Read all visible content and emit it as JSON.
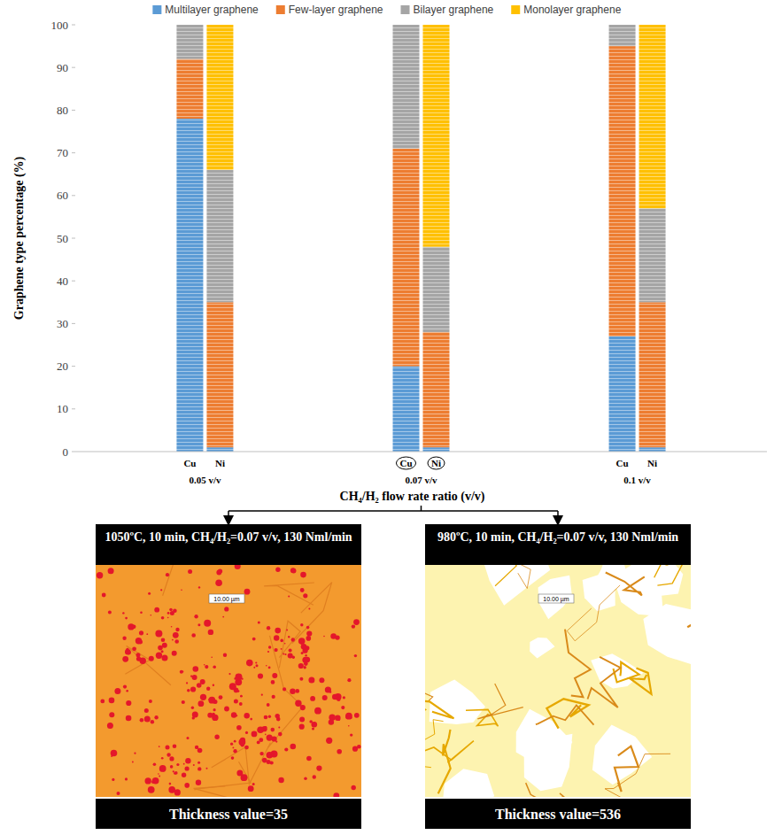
{
  "chart_data": {
    "type": "bar",
    "stacked": true,
    "y_label": "Graphene type percentage (%)",
    "x_label": "CH₄/H₂ flow rate ratio (v/v)",
    "categories": [
      "Cu",
      "Ni",
      "Cu",
      "Ni",
      "Cu",
      "Ni"
    ],
    "group_labels": [
      "0.05 v/v",
      "0.07 v/v",
      "0.1 v/v"
    ],
    "series": [
      {
        "name": "Multilayer graphene",
        "color": "#5b9bd5",
        "values": [
          78,
          1,
          20,
          1,
          27,
          1
        ]
      },
      {
        "name": "Few-layer graphene",
        "color": "#ed7d31",
        "values": [
          14,
          34,
          51,
          27,
          68,
          34
        ]
      },
      {
        "name": "Bilayer graphene",
        "color": "#a5a5a5",
        "values": [
          8,
          31,
          29,
          20,
          5,
          22
        ]
      },
      {
        "name": "Monolayer graphene",
        "color": "#ffc000",
        "values": [
          0,
          34,
          0,
          52,
          0,
          43
        ]
      }
    ],
    "ylim": [
      0,
      100
    ],
    "yticks": [
      0,
      10,
      20,
      30,
      40,
      50,
      60,
      70,
      80,
      90,
      100
    ],
    "grid": false,
    "legend": "top"
  },
  "panels": [
    {
      "title": "1050ºC, 10 min, CH₄/H₂=0.07 v/v, 130 Nml/min",
      "scale_label": "10.00 µm",
      "footer": "Thickness value=35"
    },
    {
      "title": "980ºC, 10 min, CH₄/H₂=0.07 v/v, 130 Nml/min",
      "scale_label": "10.00 µm",
      "footer": "Thickness value=536"
    }
  ]
}
